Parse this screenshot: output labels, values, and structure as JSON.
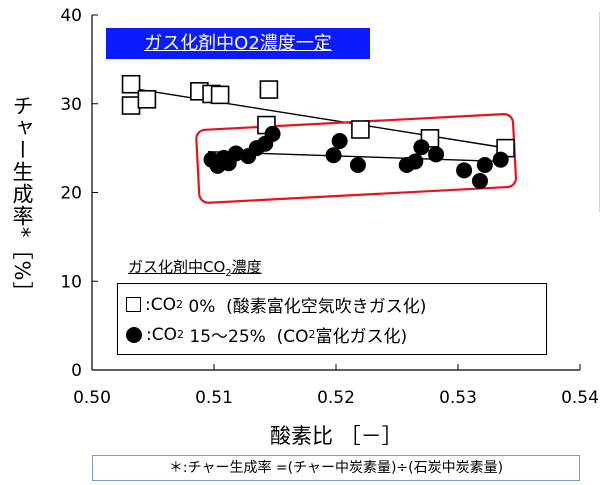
{
  "chart_data": {
    "type": "scatter",
    "title": "ガス化剤中O2濃度一定",
    "xlabel": "酸素比 ［－］",
    "ylabel": "チャー生成率*［%］",
    "xlim": [
      0.5,
      0.54
    ],
    "ylim": [
      0,
      40
    ],
    "x_ticks": [
      "0.50",
      "0.51",
      "0.52",
      "0.53",
      "0.54"
    ],
    "y_ticks": [
      "0",
      "10",
      "20",
      "30",
      "40"
    ],
    "grid": false,
    "legend_title": "ガス化剤中CO2濃度",
    "series": [
      {
        "name": "□:CO2 0% (酸素富化空気吹きガス化)",
        "marker": "open-square",
        "trend": [
          [
            0.503,
            31.8
          ],
          [
            0.534,
            25.0
          ]
        ],
        "points": [
          [
            0.5032,
            32.2
          ],
          [
            0.5032,
            29.8
          ],
          [
            0.5045,
            30.5
          ],
          [
            0.5088,
            31.4
          ],
          [
            0.5098,
            31.1
          ],
          [
            0.5105,
            31.0
          ],
          [
            0.5145,
            31.6
          ],
          [
            0.5143,
            27.6
          ],
          [
            0.522,
            27.1
          ],
          [
            0.5277,
            26.1
          ],
          [
            0.5339,
            25.0
          ]
        ]
      },
      {
        "name": "●:CO2 15～25% (CO2富化ガス化)",
        "marker": "filled-circle",
        "trend": [
          [
            0.5095,
            24.6
          ],
          [
            0.5335,
            23.5
          ]
        ],
        "points": [
          [
            0.5098,
            23.7
          ],
          [
            0.5103,
            23.0
          ],
          [
            0.5108,
            23.9
          ],
          [
            0.5112,
            23.3
          ],
          [
            0.5118,
            24.4
          ],
          [
            0.5128,
            24.1
          ],
          [
            0.5135,
            25.0
          ],
          [
            0.5142,
            25.5
          ],
          [
            0.5148,
            26.6
          ],
          [
            0.5198,
            24.2
          ],
          [
            0.5203,
            25.8
          ],
          [
            0.5218,
            23.1
          ],
          [
            0.5258,
            23.1
          ],
          [
            0.5265,
            23.5
          ],
          [
            0.527,
            25.1
          ],
          [
            0.5282,
            24.3
          ],
          [
            0.5305,
            22.5
          ],
          [
            0.5318,
            21.3
          ],
          [
            0.5322,
            23.1
          ],
          [
            0.5335,
            23.7
          ]
        ]
      }
    ],
    "annotation": "red rounded box around ● data"
  },
  "legend": {
    "heading_prefix": "ガス化剤中CO",
    "heading_sub": "2",
    "heading_suffix": "濃度",
    "row1_co": ":CO",
    "row1_sub": "2",
    "row1_rest": " 0%  (酸素富化空気吹きガス化)",
    "row2_co": ":CO",
    "row2_sub": "2",
    "row2_mid": " 15～25%  (CO",
    "row2_sub2": "2",
    "row2_rest": "富化ガス化)"
  },
  "footnote": "＊:チャー生成率 =(チャー中炭素量)÷(石炭中炭素量)",
  "colors": {
    "title_bg": "#0a1bff",
    "highlight_box": "#e8121c",
    "marker": "#000000"
  }
}
